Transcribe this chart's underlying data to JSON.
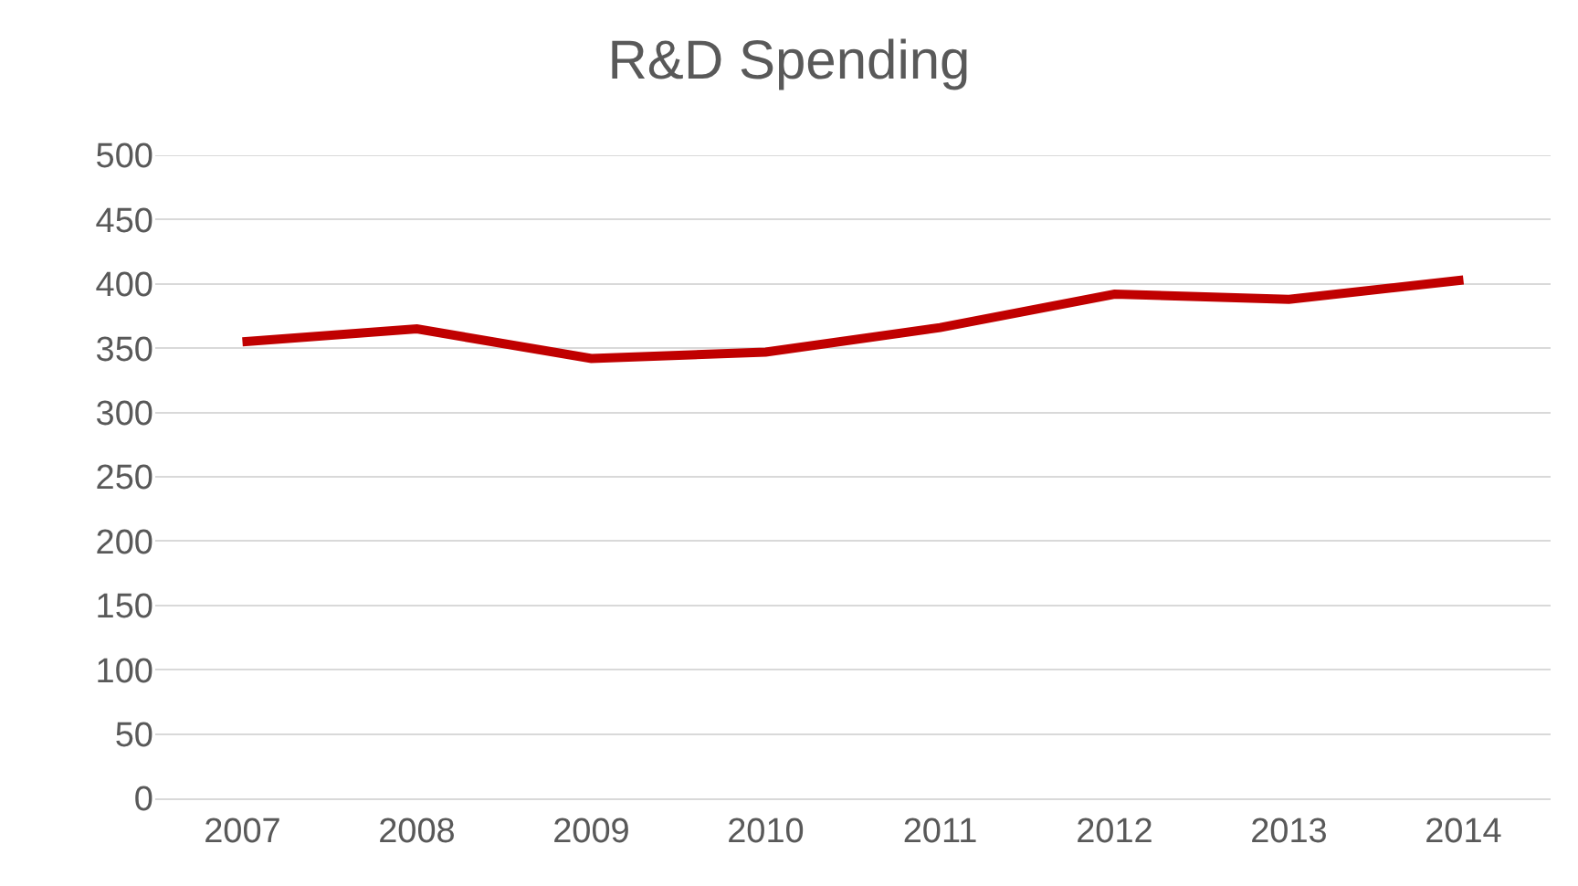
{
  "chart_data": {
    "type": "line",
    "title": "R&D Spending",
    "categories": [
      "2007",
      "2008",
      "2009",
      "2010",
      "2011",
      "2012",
      "2013",
      "2014"
    ],
    "series": [
      {
        "color": "#c00000",
        "values": [
          355,
          365,
          342,
          347,
          366,
          392,
          388,
          403
        ]
      }
    ],
    "ylim": [
      0,
      500
    ],
    "yticks": [
      0,
      50,
      100,
      150,
      200,
      250,
      300,
      350,
      400,
      450,
      500
    ],
    "grid": "y",
    "marker": "none",
    "line_style": "solid"
  }
}
